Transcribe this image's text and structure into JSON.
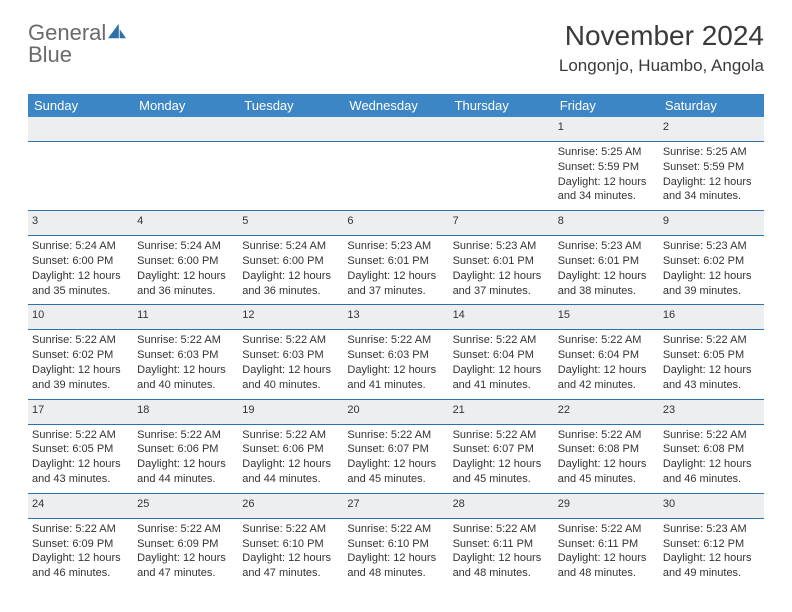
{
  "logo": {
    "word1": "General",
    "word2": "Blue"
  },
  "title": "November 2024",
  "location": "Longonjo, Huambo, Angola",
  "weekday_header_bg": "#3d86c6",
  "rule_color": "#2f6fa8",
  "daynum_bg": "#eceef0",
  "weekdays": [
    "Sunday",
    "Monday",
    "Tuesday",
    "Wednesday",
    "Thursday",
    "Friday",
    "Saturday"
  ],
  "weeks": [
    {
      "days": [
        null,
        null,
        null,
        null,
        null,
        {
          "n": "1",
          "sr": "Sunrise: 5:25 AM",
          "ss": "Sunset: 5:59 PM",
          "dl1": "Daylight: 12 hours",
          "dl2": "and 34 minutes."
        },
        {
          "n": "2",
          "sr": "Sunrise: 5:25 AM",
          "ss": "Sunset: 5:59 PM",
          "dl1": "Daylight: 12 hours",
          "dl2": "and 34 minutes."
        }
      ]
    },
    {
      "days": [
        {
          "n": "3",
          "sr": "Sunrise: 5:24 AM",
          "ss": "Sunset: 6:00 PM",
          "dl1": "Daylight: 12 hours",
          "dl2": "and 35 minutes."
        },
        {
          "n": "4",
          "sr": "Sunrise: 5:24 AM",
          "ss": "Sunset: 6:00 PM",
          "dl1": "Daylight: 12 hours",
          "dl2": "and 36 minutes."
        },
        {
          "n": "5",
          "sr": "Sunrise: 5:24 AM",
          "ss": "Sunset: 6:00 PM",
          "dl1": "Daylight: 12 hours",
          "dl2": "and 36 minutes."
        },
        {
          "n": "6",
          "sr": "Sunrise: 5:23 AM",
          "ss": "Sunset: 6:01 PM",
          "dl1": "Daylight: 12 hours",
          "dl2": "and 37 minutes."
        },
        {
          "n": "7",
          "sr": "Sunrise: 5:23 AM",
          "ss": "Sunset: 6:01 PM",
          "dl1": "Daylight: 12 hours",
          "dl2": "and 37 minutes."
        },
        {
          "n": "8",
          "sr": "Sunrise: 5:23 AM",
          "ss": "Sunset: 6:01 PM",
          "dl1": "Daylight: 12 hours",
          "dl2": "and 38 minutes."
        },
        {
          "n": "9",
          "sr": "Sunrise: 5:23 AM",
          "ss": "Sunset: 6:02 PM",
          "dl1": "Daylight: 12 hours",
          "dl2": "and 39 minutes."
        }
      ]
    },
    {
      "days": [
        {
          "n": "10",
          "sr": "Sunrise: 5:22 AM",
          "ss": "Sunset: 6:02 PM",
          "dl1": "Daylight: 12 hours",
          "dl2": "and 39 minutes."
        },
        {
          "n": "11",
          "sr": "Sunrise: 5:22 AM",
          "ss": "Sunset: 6:03 PM",
          "dl1": "Daylight: 12 hours",
          "dl2": "and 40 minutes."
        },
        {
          "n": "12",
          "sr": "Sunrise: 5:22 AM",
          "ss": "Sunset: 6:03 PM",
          "dl1": "Daylight: 12 hours",
          "dl2": "and 40 minutes."
        },
        {
          "n": "13",
          "sr": "Sunrise: 5:22 AM",
          "ss": "Sunset: 6:03 PM",
          "dl1": "Daylight: 12 hours",
          "dl2": "and 41 minutes."
        },
        {
          "n": "14",
          "sr": "Sunrise: 5:22 AM",
          "ss": "Sunset: 6:04 PM",
          "dl1": "Daylight: 12 hours",
          "dl2": "and 41 minutes."
        },
        {
          "n": "15",
          "sr": "Sunrise: 5:22 AM",
          "ss": "Sunset: 6:04 PM",
          "dl1": "Daylight: 12 hours",
          "dl2": "and 42 minutes."
        },
        {
          "n": "16",
          "sr": "Sunrise: 5:22 AM",
          "ss": "Sunset: 6:05 PM",
          "dl1": "Daylight: 12 hours",
          "dl2": "and 43 minutes."
        }
      ]
    },
    {
      "days": [
        {
          "n": "17",
          "sr": "Sunrise: 5:22 AM",
          "ss": "Sunset: 6:05 PM",
          "dl1": "Daylight: 12 hours",
          "dl2": "and 43 minutes."
        },
        {
          "n": "18",
          "sr": "Sunrise: 5:22 AM",
          "ss": "Sunset: 6:06 PM",
          "dl1": "Daylight: 12 hours",
          "dl2": "and 44 minutes."
        },
        {
          "n": "19",
          "sr": "Sunrise: 5:22 AM",
          "ss": "Sunset: 6:06 PM",
          "dl1": "Daylight: 12 hours",
          "dl2": "and 44 minutes."
        },
        {
          "n": "20",
          "sr": "Sunrise: 5:22 AM",
          "ss": "Sunset: 6:07 PM",
          "dl1": "Daylight: 12 hours",
          "dl2": "and 45 minutes."
        },
        {
          "n": "21",
          "sr": "Sunrise: 5:22 AM",
          "ss": "Sunset: 6:07 PM",
          "dl1": "Daylight: 12 hours",
          "dl2": "and 45 minutes."
        },
        {
          "n": "22",
          "sr": "Sunrise: 5:22 AM",
          "ss": "Sunset: 6:08 PM",
          "dl1": "Daylight: 12 hours",
          "dl2": "and 45 minutes."
        },
        {
          "n": "23",
          "sr": "Sunrise: 5:22 AM",
          "ss": "Sunset: 6:08 PM",
          "dl1": "Daylight: 12 hours",
          "dl2": "and 46 minutes."
        }
      ]
    },
    {
      "days": [
        {
          "n": "24",
          "sr": "Sunrise: 5:22 AM",
          "ss": "Sunset: 6:09 PM",
          "dl1": "Daylight: 12 hours",
          "dl2": "and 46 minutes."
        },
        {
          "n": "25",
          "sr": "Sunrise: 5:22 AM",
          "ss": "Sunset: 6:09 PM",
          "dl1": "Daylight: 12 hours",
          "dl2": "and 47 minutes."
        },
        {
          "n": "26",
          "sr": "Sunrise: 5:22 AM",
          "ss": "Sunset: 6:10 PM",
          "dl1": "Daylight: 12 hours",
          "dl2": "and 47 minutes."
        },
        {
          "n": "27",
          "sr": "Sunrise: 5:22 AM",
          "ss": "Sunset: 6:10 PM",
          "dl1": "Daylight: 12 hours",
          "dl2": "and 48 minutes."
        },
        {
          "n": "28",
          "sr": "Sunrise: 5:22 AM",
          "ss": "Sunset: 6:11 PM",
          "dl1": "Daylight: 12 hours",
          "dl2": "and 48 minutes."
        },
        {
          "n": "29",
          "sr": "Sunrise: 5:22 AM",
          "ss": "Sunset: 6:11 PM",
          "dl1": "Daylight: 12 hours",
          "dl2": "and 48 minutes."
        },
        {
          "n": "30",
          "sr": "Sunrise: 5:23 AM",
          "ss": "Sunset: 6:12 PM",
          "dl1": "Daylight: 12 hours",
          "dl2": "and 49 minutes."
        }
      ]
    }
  ]
}
